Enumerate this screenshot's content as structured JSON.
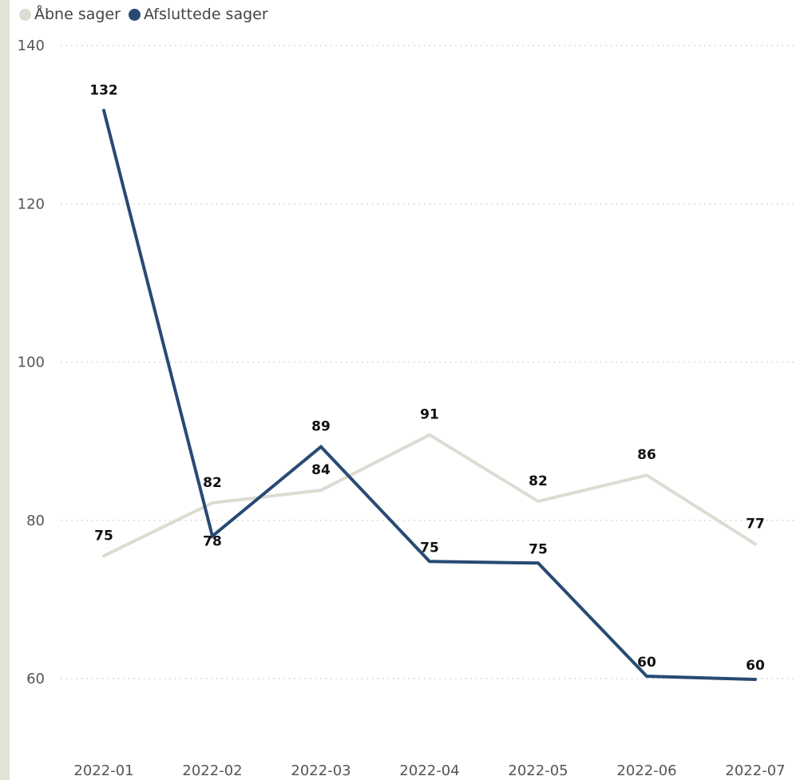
{
  "legend": [
    {
      "name": "Åbne sager",
      "color": "#dcdcd2"
    },
    {
      "name": "Afsluttede sager",
      "color": "#284a73"
    }
  ],
  "chart_data": {
    "type": "line",
    "x": [
      "2022-01",
      "2022-02",
      "2022-03",
      "2022-04",
      "2022-05",
      "2022-06",
      "2022-07"
    ],
    "series": [
      {
        "name": "Åbne sager",
        "color": "#dcdcd2",
        "values": [
          75.5,
          82.2,
          83.8,
          90.8,
          82.4,
          85.7,
          77.0
        ],
        "labels": [
          "75",
          "82",
          "84",
          "91",
          "82",
          "86",
          "77"
        ]
      },
      {
        "name": "Afsluttede sager",
        "color": "#284a73",
        "values": [
          131.8,
          78.0,
          89.3,
          74.8,
          74.6,
          60.3,
          59.9
        ],
        "labels": [
          "132",
          "78",
          "89",
          "75",
          "75",
          "60",
          "60"
        ]
      }
    ],
    "yticks": [
      60,
      80,
      100,
      120,
      140
    ],
    "ylim": [
      51,
      140
    ],
    "grid": true,
    "legend_position": "top-left"
  }
}
